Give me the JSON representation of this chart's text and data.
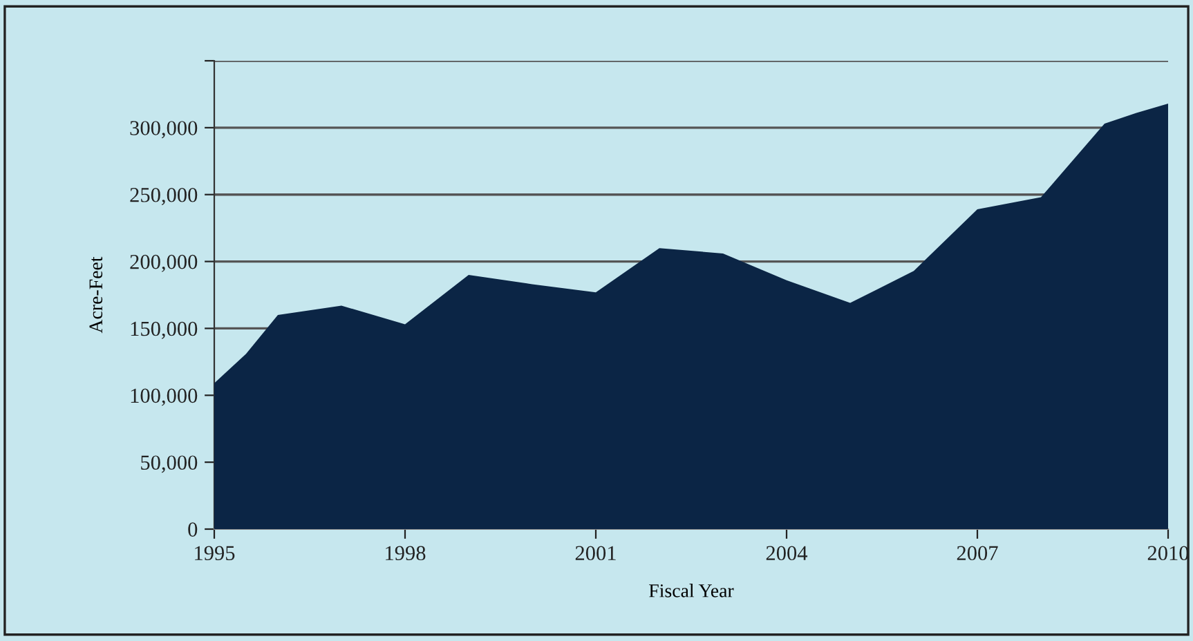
{
  "chart_data": {
    "type": "area",
    "xlabel": "Fiscal Year",
    "ylabel": "Acre-Feet",
    "x": [
      1995,
      1995.5,
      1996,
      1997,
      1998,
      1999,
      2000,
      2001,
      2002,
      2003,
      2004,
      2005,
      2006,
      2007,
      2008,
      2009,
      2009.5,
      2010
    ],
    "series": [
      {
        "color": "#0b2545",
        "values": [
          109000,
          131000,
          160000,
          167000,
          153000,
          190000,
          183000,
          177000,
          210000,
          206000,
          186000,
          169000,
          193000,
          239000,
          248000,
          303000,
          311000,
          318000
        ]
      }
    ],
    "xlim": [
      1995,
      2010
    ],
    "xticks": [
      1995,
      1998,
      2001,
      2004,
      2007,
      2010
    ],
    "ylim": [
      0,
      350000
    ],
    "yticks": [
      {
        "value": 0,
        "label": "0"
      },
      {
        "value": 50000,
        "label": "50,000"
      },
      {
        "value": 100000,
        "label": "100,000"
      },
      {
        "value": 150000,
        "label": "150,000"
      },
      {
        "value": 200000,
        "label": "200,000"
      },
      {
        "value": 250000,
        "label": "250,000"
      },
      {
        "value": 300000,
        "label": "300,000"
      },
      {
        "value": 350000,
        "label": null
      }
    ],
    "grid": "y",
    "legend": false
  }
}
